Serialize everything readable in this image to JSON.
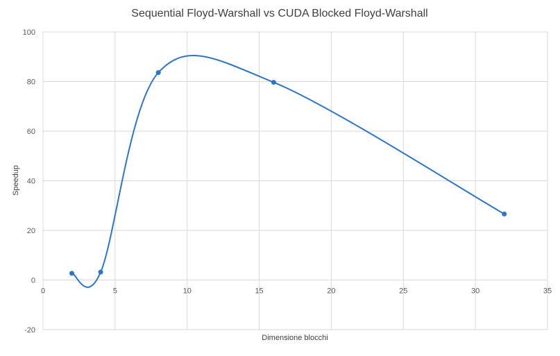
{
  "chart_data": {
    "type": "scatter",
    "title": "Sequential Floyd-Warshall vs CUDA Blocked Floyd-Warshall",
    "xlabel": "Dimensione blocchi",
    "ylabel": "Speedup",
    "xlim": [
      0,
      35
    ],
    "ylim": [
      -20,
      100
    ],
    "xticks": [
      0,
      5,
      10,
      15,
      20,
      25,
      30,
      35
    ],
    "yticks": [
      -20,
      0,
      20,
      40,
      60,
      80,
      100
    ],
    "grid": true,
    "smooth_line": true,
    "series_color": "#2e75c8",
    "grid_color": "#d9d9d9",
    "series": [
      {
        "points": [
          {
            "x": 2,
            "y": 2.7
          },
          {
            "x": 4,
            "y": 3.2
          },
          {
            "x": 8,
            "y": 83.6
          },
          {
            "x": 16,
            "y": 79.7
          },
          {
            "x": 32,
            "y": 26.6
          }
        ]
      }
    ]
  }
}
